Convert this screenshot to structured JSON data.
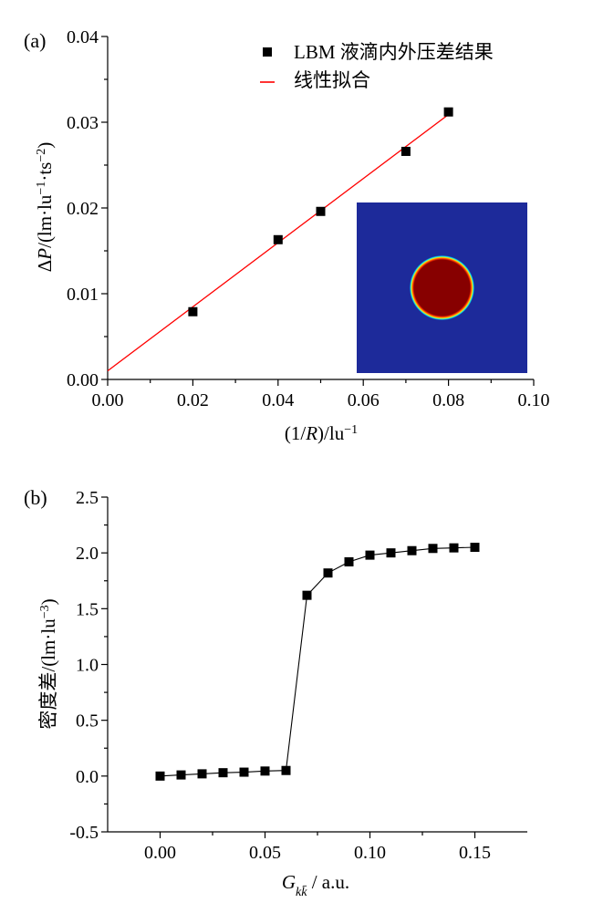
{
  "chart_data": [
    {
      "panel_label": "(a)",
      "type": "scatter",
      "xlabel_parts": [
        "(1/",
        "R",
        ")/lu",
        "−1"
      ],
      "ylabel_parts": [
        "Δ",
        "P",
        "/(lm·lu",
        "−1",
        "·ts",
        "−2",
        ")"
      ],
      "xlim": [
        0.0,
        0.1
      ],
      "ylim": [
        0.0,
        0.04
      ],
      "xticks": [
        0.0,
        0.02,
        0.04,
        0.06,
        0.08,
        0.1
      ],
      "xtick_labels": [
        "0.00",
        "0.02",
        "0.04",
        "0.06",
        "0.08",
        "0.10"
      ],
      "yticks": [
        0.0,
        0.01,
        0.02,
        0.03,
        0.04
      ],
      "ytick_labels": [
        "0.00",
        "0.01",
        "0.02",
        "0.03",
        "0.04"
      ],
      "legend_position": "top-right",
      "series": [
        {
          "name": "LBM 液滴内外压差结果",
          "kind": "markers",
          "marker": "square",
          "color": "#000000",
          "x": [
            0.02,
            0.04,
            0.05,
            0.07,
            0.08
          ],
          "y": [
            0.0079,
            0.0163,
            0.0196,
            0.0266,
            0.0312
          ]
        },
        {
          "name": "线性拟合",
          "kind": "line",
          "color": "#ff0000",
          "x": [
            0.0,
            0.08
          ],
          "y": [
            0.001,
            0.0309
          ]
        }
      ],
      "inset": {
        "type": "heatmap",
        "background": "#1d2a9a",
        "droplet_color": "#870000",
        "ring_colors": [
          "#ff3300",
          "#ffe600",
          "#00e5ff"
        ],
        "droplet_center": [
          0.5,
          0.5
        ],
        "droplet_radius": 0.19
      }
    },
    {
      "panel_label": "(b)",
      "type": "line",
      "xlabel_parts": [
        "G",
        "kk̄",
        " / a.u."
      ],
      "ylabel_parts": [
        "密度差/(lm·lu",
        "−3",
        ")"
      ],
      "xlim": [
        -0.025,
        0.175
      ],
      "ylim": [
        -0.5,
        2.5
      ],
      "xticks": [
        0.0,
        0.05,
        0.1,
        0.15
      ],
      "xtick_labels": [
        "0.00",
        "0.05",
        "0.10",
        "0.15"
      ],
      "yticks": [
        -0.5,
        0.0,
        0.5,
        1.0,
        1.5,
        2.0,
        2.5
      ],
      "ytick_labels": [
        "-0.5",
        "0.0",
        "0.5",
        "1.0",
        "1.5",
        "2.0",
        "2.5"
      ],
      "series": [
        {
          "kind": "line+markers",
          "marker": "square",
          "color": "#000000",
          "x": [
            0.0,
            0.01,
            0.02,
            0.03,
            0.04,
            0.05,
            0.06,
            0.07,
            0.08,
            0.09,
            0.1,
            0.11,
            0.12,
            0.13,
            0.14,
            0.15
          ],
          "y": [
            0.0,
            0.01,
            0.02,
            0.03,
            0.035,
            0.045,
            0.05,
            1.62,
            1.82,
            1.92,
            1.98,
            2.0,
            2.02,
            2.04,
            2.045,
            2.05
          ]
        }
      ]
    }
  ]
}
